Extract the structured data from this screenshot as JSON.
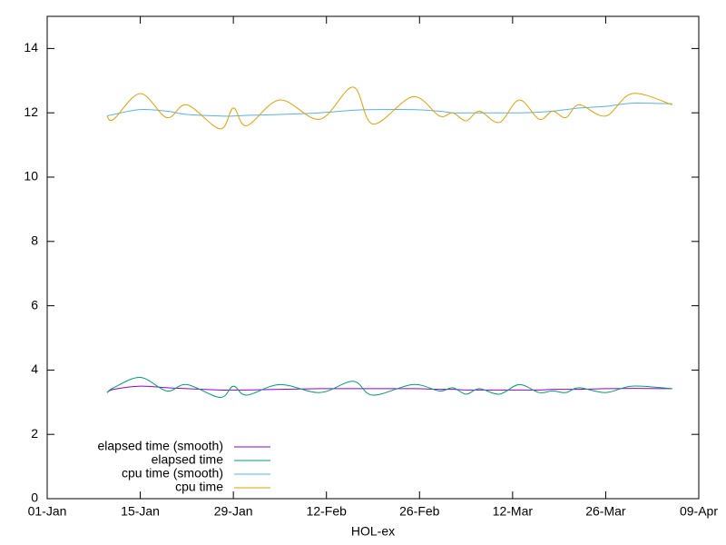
{
  "chart_data": {
    "type": "line",
    "xlabel": "HOL-ex",
    "x": [
      9,
      10,
      14,
      18,
      21,
      26,
      28,
      30,
      35,
      41,
      46,
      49,
      55,
      59,
      61,
      63,
      65,
      68,
      71,
      74,
      76,
      78,
      80,
      84,
      88,
      94
    ],
    "xlim": [
      0,
      98
    ],
    "xticks": [
      {
        "value": 0,
        "label": "01-Jan"
      },
      {
        "value": 14,
        "label": "15-Jan"
      },
      {
        "value": 28,
        "label": "29-Jan"
      },
      {
        "value": 42,
        "label": "12-Feb"
      },
      {
        "value": 56,
        "label": "26-Feb"
      },
      {
        "value": 70,
        "label": "12-Mar"
      },
      {
        "value": 84,
        "label": "26-Mar"
      },
      {
        "value": 98,
        "label": "09-Apr"
      }
    ],
    "ylim": [
      0,
      15
    ],
    "yticks": [
      0,
      2,
      4,
      6,
      8,
      10,
      12,
      14
    ],
    "legend": "bottom-left",
    "series": [
      {
        "name": "elapsed time (smooth)",
        "color": "#9400d3",
        "values": [
          3.3,
          3.4,
          3.5,
          3.45,
          3.42,
          3.38,
          3.38,
          3.38,
          3.4,
          3.42,
          3.42,
          3.42,
          3.42,
          3.4,
          3.4,
          3.38,
          3.38,
          3.38,
          3.38,
          3.38,
          3.4,
          3.4,
          3.4,
          3.42,
          3.43,
          3.42
        ]
      },
      {
        "name": "elapsed time",
        "color": "#009e73",
        "values": [
          3.3,
          3.45,
          3.77,
          3.35,
          3.55,
          3.15,
          3.5,
          3.22,
          3.55,
          3.3,
          3.65,
          3.22,
          3.55,
          3.35,
          3.45,
          3.25,
          3.42,
          3.25,
          3.55,
          3.3,
          3.35,
          3.3,
          3.45,
          3.3,
          3.5,
          3.42
        ]
      },
      {
        "name": "cpu time (smooth)",
        "color": "#56b4e9",
        "values": [
          11.9,
          11.95,
          12.1,
          12.05,
          11.95,
          11.9,
          11.9,
          11.92,
          11.95,
          12.0,
          12.08,
          12.1,
          12.1,
          12.05,
          12.0,
          12.0,
          12.0,
          12.0,
          12.0,
          12.02,
          12.05,
          12.1,
          12.15,
          12.2,
          12.3,
          12.28
        ]
      },
      {
        "name": "cpu time",
        "color": "#e69f00",
        "values": [
          11.9,
          11.8,
          12.6,
          11.85,
          12.25,
          11.5,
          12.15,
          11.6,
          12.4,
          11.8,
          12.8,
          11.65,
          12.5,
          11.9,
          12.0,
          11.75,
          12.05,
          11.7,
          12.4,
          11.8,
          12.05,
          11.85,
          12.25,
          11.9,
          12.6,
          12.25
        ]
      }
    ]
  }
}
